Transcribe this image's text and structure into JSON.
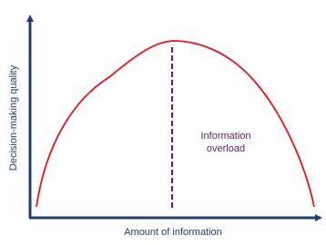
{
  "diagram": {
    "x_axis_label": "Amount of information",
    "y_axis_label": "Decision-making quality",
    "annotation": [
      "Information",
      "overload"
    ]
  }
}
